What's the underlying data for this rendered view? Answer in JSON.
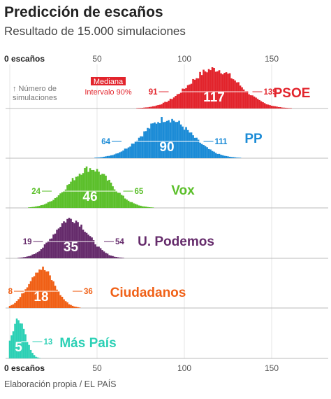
{
  "header": {
    "title": "Predicción de escaños",
    "subtitle": "Resultado de 15.000 simulaciones"
  },
  "footer": {
    "source": "Elaboración propia / EL PAÍS"
  },
  "legend": {
    "mediana": "Mediana",
    "intervalo": "Intervalo 90%",
    "y_axis_note_line1": "↑ Número de",
    "y_axis_note_line2": "simulaciones"
  },
  "chart_data": {
    "type": "histogram",
    "x_axis": {
      "ticks": [
        0,
        50,
        100,
        150
      ],
      "tick_labels": [
        "0 escaños",
        "50",
        "100",
        "150"
      ],
      "range": [
        0,
        175
      ]
    },
    "series": [
      {
        "name": "PSOE",
        "median": 117,
        "low": 91,
        "high": 139,
        "color": "#e2242c",
        "sd": 14.5
      },
      {
        "name": "PP",
        "median": 90,
        "low": 64,
        "high": 111,
        "color": "#1b8bd6",
        "sd": 14
      },
      {
        "name": "Vox",
        "median": 46,
        "low": 24,
        "high": 65,
        "color": "#5bbf2a",
        "sd": 12
      },
      {
        "name": "U. Podemos",
        "median": 35,
        "low": 19,
        "high": 54,
        "color": "#652b6b",
        "sd": 10
      },
      {
        "name": "Ciudadanos",
        "median": 18,
        "low": 8,
        "high": 36,
        "color": "#f06016",
        "sd": 7.5
      },
      {
        "name": "Más País",
        "median": 5,
        "low": null,
        "high": 13,
        "color": "#2cd0b5",
        "sd": 4
      }
    ]
  }
}
